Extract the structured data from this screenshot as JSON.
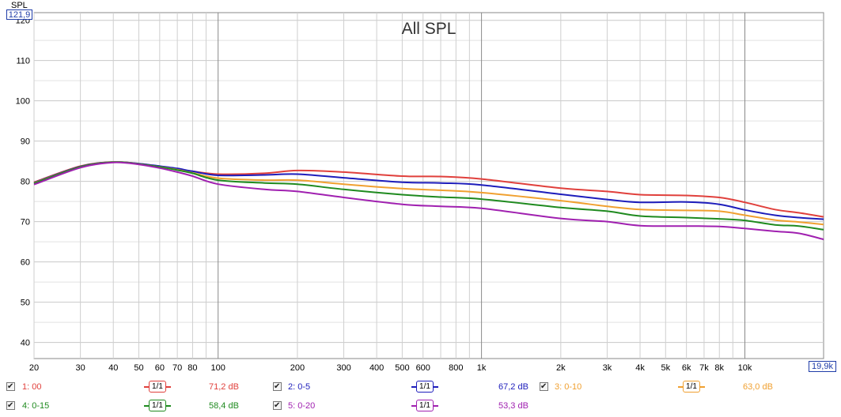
{
  "chart_data": {
    "type": "line",
    "title": "All SPL",
    "ylabel": "SPL",
    "y_axis_top_label": "121,9",
    "x_axis_end_label": "19,9k",
    "xscale": "log",
    "xlim": [
      20,
      19900
    ],
    "ylim": [
      36,
      121.9
    ],
    "grid": true,
    "y_ticks": [
      "40",
      "50",
      "60",
      "70",
      "80",
      "90",
      "100",
      "110",
      "120"
    ],
    "x_ticks": [
      {
        "value": 20,
        "label": "20"
      },
      {
        "value": 30,
        "label": "30"
      },
      {
        "value": 40,
        "label": "40"
      },
      {
        "value": 50,
        "label": "50"
      },
      {
        "value": 60,
        "label": "60"
      },
      {
        "value": 70,
        "label": "70"
      },
      {
        "value": 80,
        "label": "80"
      },
      {
        "value": 100,
        "label": "100"
      },
      {
        "value": 200,
        "label": "200"
      },
      {
        "value": 300,
        "label": "300"
      },
      {
        "value": 400,
        "label": "400"
      },
      {
        "value": 500,
        "label": "500"
      },
      {
        "value": 600,
        "label": "600"
      },
      {
        "value": 800,
        "label": "800"
      },
      {
        "value": 1000,
        "label": "1k"
      },
      {
        "value": 2000,
        "label": "2k"
      },
      {
        "value": 3000,
        "label": "3k"
      },
      {
        "value": 4000,
        "label": "4k"
      },
      {
        "value": 5000,
        "label": "5k"
      },
      {
        "value": 6000,
        "label": "6k"
      },
      {
        "value": 7000,
        "label": "7k"
      },
      {
        "value": 8000,
        "label": "8k"
      },
      {
        "value": 10000,
        "label": "10k"
      }
    ],
    "x": [
      20,
      30,
      40,
      50,
      60,
      70,
      80,
      100,
      150,
      200,
      300,
      500,
      700,
      1000,
      2000,
      3000,
      4000,
      6000,
      8000,
      10000,
      13000,
      16000,
      19900
    ],
    "series": [
      {
        "name": "1: 00",
        "color": "#e0403c",
        "smoothing": "1/1",
        "level": "71,2 dB",
        "values": [
          79.8,
          83.8,
          84.8,
          84.4,
          83.7,
          83.0,
          82.5,
          81.8,
          82.0,
          82.7,
          82.3,
          81.3,
          81.2,
          80.6,
          78.3,
          77.5,
          76.7,
          76.5,
          76.0,
          74.8,
          73.0,
          72.2,
          71.2
        ]
      },
      {
        "name": "2: 0-5",
        "color": "#1d1dbb",
        "smoothing": "1/1",
        "level": "67,2 dB",
        "values": [
          79.7,
          83.7,
          84.8,
          84.4,
          83.8,
          83.2,
          82.5,
          81.5,
          81.6,
          81.8,
          80.9,
          79.8,
          79.6,
          79.1,
          76.8,
          75.5,
          74.8,
          74.9,
          74.3,
          72.9,
          71.6,
          71.0,
          70.6
        ]
      },
      {
        "name": "3: 0-10",
        "color": "#f0a030",
        "smoothing": "1/1",
        "level": "63,0 dB",
        "values": [
          79.6,
          83.6,
          84.8,
          84.3,
          83.6,
          82.9,
          82.1,
          80.8,
          80.3,
          80.3,
          79.3,
          78.2,
          77.8,
          77.2,
          75.2,
          73.8,
          73.0,
          72.8,
          72.6,
          71.6,
          70.4,
          69.9,
          69.3
        ]
      },
      {
        "name": "4: 0-15",
        "color": "#1f8a1f",
        "smoothing": "1/1",
        "level": "58,4 dB",
        "values": [
          79.5,
          83.6,
          84.8,
          84.3,
          83.6,
          82.8,
          82.0,
          80.3,
          79.6,
          79.3,
          78.0,
          76.7,
          76.1,
          75.6,
          73.5,
          72.6,
          71.4,
          71.0,
          70.7,
          70.3,
          69.2,
          68.9,
          68.0
        ]
      },
      {
        "name": "5: 0-20",
        "color": "#a020b0",
        "smoothing": "1/1",
        "level": "53,3 dB",
        "values": [
          79.2,
          83.4,
          84.7,
          84.2,
          83.3,
          82.3,
          81.3,
          79.3,
          78.0,
          77.5,
          76.0,
          74.3,
          73.8,
          73.3,
          70.8,
          70.0,
          69.0,
          68.9,
          68.8,
          68.3,
          67.6,
          67.1,
          65.6
        ]
      }
    ]
  }
}
